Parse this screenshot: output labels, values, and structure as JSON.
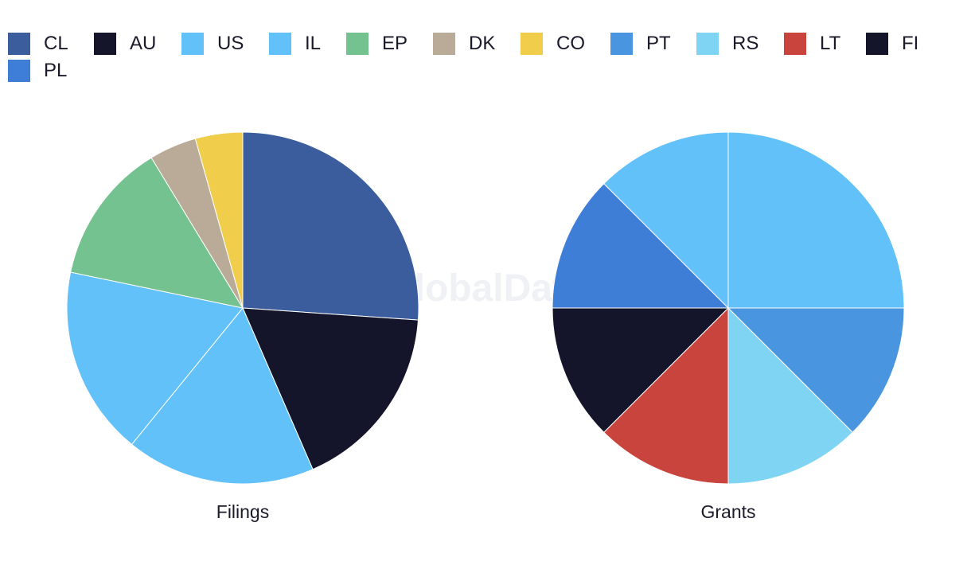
{
  "watermark": "GlobalData",
  "legend": [
    {
      "label": "CL",
      "color": "#3b5d9e"
    },
    {
      "label": "AU",
      "color": "#14152b"
    },
    {
      "label": "US",
      "color": "#62c1f9"
    },
    {
      "label": "IL",
      "color": "#62c1f9"
    },
    {
      "label": "EP",
      "color": "#74c28f"
    },
    {
      "label": "DK",
      "color": "#b9ab98"
    },
    {
      "label": "CO",
      "color": "#f0cd4b"
    },
    {
      "label": "PT",
      "color": "#4a95e0"
    },
    {
      "label": "RS",
      "color": "#7fd4f4"
    },
    {
      "label": "LT",
      "color": "#c9443d"
    },
    {
      "label": "FI",
      "color": "#14152b"
    },
    {
      "label": "PL",
      "color": "#3f7ed6"
    }
  ],
  "chart_data": [
    {
      "type": "pie",
      "title": "Filings",
      "slices": [
        {
          "label": "CL",
          "value": 6,
          "color": "#3b5d9e"
        },
        {
          "label": "AU",
          "value": 4,
          "color": "#14152b"
        },
        {
          "label": "US",
          "value": 4,
          "color": "#62c1f9"
        },
        {
          "label": "IL",
          "value": 4,
          "color": "#62c1f9"
        },
        {
          "label": "EP",
          "value": 3,
          "color": "#74c28f"
        },
        {
          "label": "DK",
          "value": 1,
          "color": "#b9ab98"
        },
        {
          "label": "CO",
          "value": 1,
          "color": "#f0cd4b"
        }
      ]
    },
    {
      "type": "pie",
      "title": "Grants",
      "slices": [
        {
          "label": "US",
          "value": 2,
          "color": "#62c1f9"
        },
        {
          "label": "PT",
          "value": 1,
          "color": "#4a95e0"
        },
        {
          "label": "RS",
          "value": 1,
          "color": "#7fd4f4"
        },
        {
          "label": "LT",
          "value": 1,
          "color": "#c9443d"
        },
        {
          "label": "FI",
          "value": 1,
          "color": "#14152b"
        },
        {
          "label": "PL",
          "value": 1,
          "color": "#3f7ed6"
        },
        {
          "label": "IL",
          "value": 1,
          "color": "#62c1f9"
        }
      ]
    }
  ]
}
